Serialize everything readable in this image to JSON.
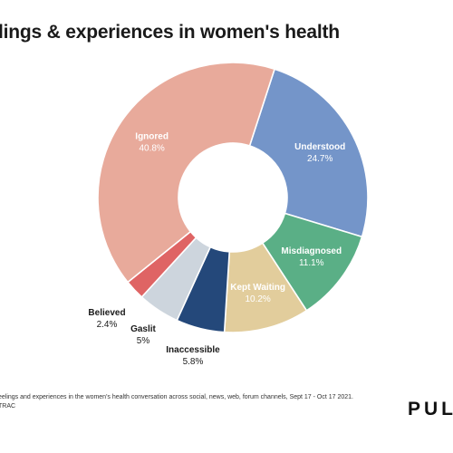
{
  "title": "lings & experiences in women's health",
  "footnote_line1": "eelings and experiences in the women's health conversation across social, news, web, forum channels, Sept 17 - Oct 17 2021.",
  "footnote_line2": "TRAC",
  "brand": "PUL",
  "chart_data": {
    "type": "pie",
    "donut": true,
    "slices": [
      {
        "label": "Understood",
        "value": 24.7,
        "value_label": "24.7%",
        "color": "#7495c9",
        "label_inside": true
      },
      {
        "label": "Misdiagnosed",
        "value": 11.1,
        "value_label": "11.1%",
        "color": "#5aaf86",
        "label_inside": true
      },
      {
        "label": "Kept Waiting",
        "value": 10.2,
        "value_label": "10.2%",
        "color": "#e2cd9c",
        "label_inside": true
      },
      {
        "label": "Inaccessible",
        "value": 5.8,
        "value_label": "5.8%",
        "color": "#24487a",
        "label_inside": false
      },
      {
        "label": "Gaslit",
        "value": 5,
        "value_label": "5%",
        "color": "#cdd5dd",
        "label_inside": false
      },
      {
        "label": "Believed",
        "value": 2.4,
        "value_label": "2.4%",
        "color": "#df6464",
        "label_inside": false
      },
      {
        "label": "Ignored",
        "value": 40.8,
        "value_label": "40.8%",
        "color": "#e8aa9b",
        "label_inside": true
      }
    ]
  }
}
